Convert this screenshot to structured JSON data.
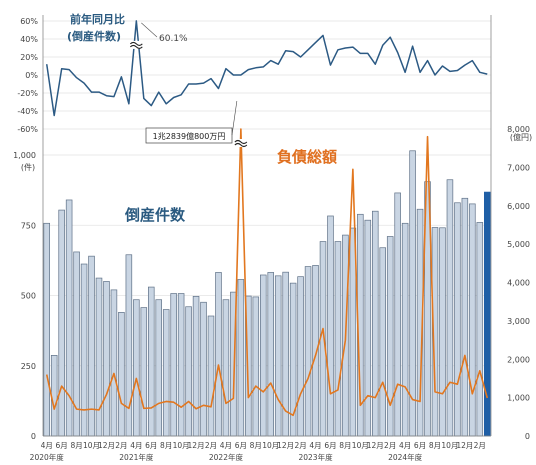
{
  "chart_data": [
    {
      "type": "line",
      "title": "前年同月比",
      "subtitle": "(倒産件数)",
      "ylim": [
        -60,
        60
      ],
      "yticks": [
        "60%",
        "40%",
        "20%",
        "0%",
        "-20%",
        "-40%",
        "-60%"
      ],
      "yticks_num": [
        60,
        40,
        20,
        0,
        -20,
        -40,
        -60
      ],
      "peak_label": "60.1%",
      "series": [
        {
          "values": [
            12,
            -45,
            7,
            6,
            -3,
            -9,
            -19,
            -19,
            -23,
            -24,
            -2,
            -32,
            60.1,
            -26,
            -34,
            -19,
            -32,
            -25,
            -22,
            -10,
            -10,
            -9,
            -4,
            -15,
            7,
            0,
            0,
            6,
            8,
            9,
            16,
            12,
            27,
            26,
            20,
            28,
            36,
            44,
            11,
            28,
            30,
            31,
            24,
            24,
            12,
            33,
            42,
            25,
            3,
            32,
            3,
            16,
            0,
            10,
            4,
            5,
            11,
            16,
            3,
            1
          ]
        }
      ]
    },
    {
      "type": "bar",
      "ylabel": "(件)",
      "ylim": [
        0,
        1000
      ],
      "yticks": [
        "1,000",
        "750",
        "500",
        "250",
        "0"
      ],
      "yticks_num": [
        1000,
        750,
        500,
        250,
        0
      ],
      "series": [
        {
          "name": "倒産件数",
          "values": [
            757,
            287,
            804,
            840,
            655,
            612,
            640,
            562,
            550,
            520,
            440,
            645,
            485,
            457,
            530,
            485,
            450,
            507,
            507,
            460,
            497,
            476,
            427,
            582,
            485,
            512,
            557,
            498,
            495,
            573,
            582,
            570,
            583,
            544,
            567,
            603,
            607,
            692,
            783,
            692,
            715,
            740,
            789,
            768,
            800,
            670,
            710,
            865,
            757,
            1015,
            807,
            905,
            742,
            741,
            912,
            830,
            846,
            826,
            760,
            868
          ]
        }
      ]
    },
    {
      "type": "line",
      "y2label": "(億円)",
      "y2lim": [
        0,
        8000
      ],
      "y2ticks": [
        "8,000",
        "7,000",
        "6,000",
        "5,000",
        "4,000",
        "3,000",
        "2,000",
        "1,000",
        "0"
      ],
      "y2ticks_num": [
        8000,
        7000,
        6000,
        5000,
        4000,
        3000,
        2000,
        1000,
        0
      ],
      "series": [
        {
          "name": "負債総額",
          "values": [
            1600,
            700,
            1300,
            1050,
            700,
            680,
            700,
            680,
            1080,
            1630,
            850,
            720,
            1500,
            720,
            730,
            850,
            900,
            880,
            750,
            900,
            710,
            800,
            760,
            1850,
            850,
            980,
            8000,
            1000,
            1300,
            1150,
            1380,
            950,
            650,
            540,
            1100,
            1500,
            2100,
            2800,
            1100,
            1200,
            2500,
            6950,
            800,
            1050,
            1000,
            1400,
            800,
            1350,
            1280,
            950,
            900,
            7800,
            1150,
            1100,
            1400,
            1350,
            2100,
            1100,
            1700,
            990
          ]
        }
      ],
      "break_label": "1兆2839億800万円"
    }
  ],
  "x_axis": {
    "month_labels": [
      "4月",
      "6月",
      "8月",
      "10月",
      "12月",
      "2月",
      "4月",
      "6月",
      "8月",
      "10月",
      "12月",
      "2月",
      "4月",
      "6月",
      "8月",
      "10月",
      "12月",
      "2月",
      "4月",
      "6月",
      "8月",
      "10月",
      "12月",
      "2月",
      "4月",
      "6月",
      "8月",
      "10月",
      "12月",
      "2月"
    ],
    "year_labels": [
      "2020年度",
      "2021年度",
      "2022年度",
      "2023年度",
      "2024年度"
    ]
  },
  "colors": {
    "bar_fill": "#c9d5e3",
    "bar_stroke": "#5f7187",
    "bar_highlight": "#1f5fa6",
    "yoy_line": "#2c5a84",
    "debt_line": "#e2771f",
    "title_blue": "#2a5a80",
    "title_orange": "#e07020"
  }
}
